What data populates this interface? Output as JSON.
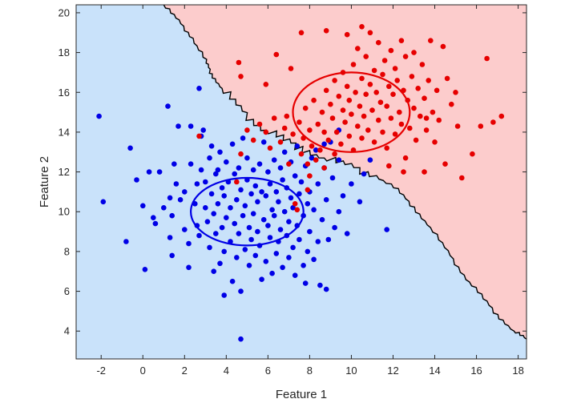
{
  "chart_data": {
    "type": "scatter",
    "title": "",
    "xlabel": "Feature 1",
    "ylabel": "Feature 2",
    "xlim": [
      -3.2,
      18.4
    ],
    "ylim": [
      2.6,
      20.4
    ],
    "x_ticks": [
      -2,
      0,
      2,
      4,
      6,
      8,
      10,
      12,
      14,
      16,
      18
    ],
    "y_ticks": [
      4,
      6,
      8,
      10,
      12,
      14,
      16,
      18,
      20
    ],
    "grid": false,
    "legend": "none",
    "colors": {
      "class_blue_point": "#0000e6",
      "class_red_point": "#e60000",
      "region_blue": "#c9e2fa",
      "region_red": "#fccccc",
      "boundary": "#000000"
    },
    "decision_boundary": [
      [
        1.0,
        20.4
      ],
      [
        1.7,
        19.6
      ],
      [
        2.4,
        18.7
      ],
      [
        3.0,
        17.6
      ],
      [
        3.3,
        16.9
      ],
      [
        3.8,
        16.2
      ],
      [
        4.6,
        15.2
      ],
      [
        5.6,
        14.3
      ],
      [
        6.6,
        13.7
      ],
      [
        7.6,
        13.2
      ],
      [
        8.7,
        12.7
      ],
      [
        9.9,
        12.3
      ],
      [
        11.2,
        11.8
      ],
      [
        12.2,
        11.1
      ],
      [
        13.0,
        10.2
      ],
      [
        13.8,
        9.2
      ],
      [
        14.6,
        8.0
      ],
      [
        15.4,
        6.8
      ],
      [
        16.2,
        5.8
      ],
      [
        17.0,
        4.8
      ],
      [
        17.8,
        4.0
      ],
      [
        18.4,
        3.6
      ]
    ],
    "class_regions": [
      {
        "name": "class-blue",
        "center": [
          5,
          10
        ],
        "radius_x": 2.7,
        "radius_y": 1.7
      },
      {
        "name": "class-red",
        "center": [
          10,
          15
        ],
        "radius_x": 2.8,
        "radius_y": 2.0
      }
    ],
    "series": [
      {
        "key": "blue",
        "points": [
          [
            -2.1,
            14.8
          ],
          [
            -1.9,
            10.5
          ],
          [
            -0.8,
            8.5
          ],
          [
            -0.6,
            13.2
          ],
          [
            -0.3,
            11.6
          ],
          [
            0,
            10.3
          ],
          [
            0.1,
            7.1
          ],
          [
            0.3,
            12.0
          ],
          [
            0.5,
            9.7
          ],
          [
            0.6,
            9.4
          ],
          [
            0.8,
            12.0
          ],
          [
            1.0,
            10.2
          ],
          [
            1.2,
            15.3
          ],
          [
            1.3,
            10.7
          ],
          [
            1.4,
            9.8
          ],
          [
            1.3,
            8.7
          ],
          [
            1.4,
            7.8
          ],
          [
            1.5,
            12.4
          ],
          [
            1.6,
            11.4
          ],
          [
            1.7,
            14.3
          ],
          [
            1.8,
            10.6
          ],
          [
            2.0,
            11.0
          ],
          [
            2.0,
            9.1
          ],
          [
            2.2,
            7.2
          ],
          [
            2.2,
            8.4
          ],
          [
            2.3,
            14.3
          ],
          [
            2.3,
            12.4
          ],
          [
            2.5,
            10.4
          ],
          [
            2.6,
            11.4
          ],
          [
            2.6,
            9.3
          ],
          [
            2.7,
            8.8
          ],
          [
            2.7,
            16.2
          ],
          [
            2.8,
            12.1
          ],
          [
            2.8,
            13.8
          ],
          [
            2.9,
            14.1
          ],
          [
            3.0,
            10.2
          ],
          [
            3.0,
            11.5
          ],
          [
            3.1,
            9.5
          ],
          [
            3.2,
            8.2
          ],
          [
            3.2,
            12.7
          ],
          [
            3.3,
            10.9
          ],
          [
            3.3,
            13.3
          ],
          [
            3.4,
            7.0
          ],
          [
            3.4,
            9.9
          ],
          [
            3.5,
            11.9
          ],
          [
            3.5,
            8.9
          ],
          [
            3.6,
            10.4
          ],
          [
            3.6,
            12.1
          ],
          [
            3.7,
            7.4
          ],
          [
            3.7,
            13.0
          ],
          [
            3.8,
            11.2
          ],
          [
            3.8,
            9.2
          ],
          [
            3.9,
            10.8
          ],
          [
            3.9,
            8.0
          ],
          [
            3.9,
            5.8
          ],
          [
            4.0,
            12.5
          ],
          [
            4.0,
            9.7
          ],
          [
            4.1,
            11.5
          ],
          [
            4.2,
            10.2
          ],
          [
            4.2,
            8.5
          ],
          [
            4.3,
            13.4
          ],
          [
            4.3,
            6.5
          ],
          [
            4.4,
            11.9
          ],
          [
            4.4,
            9.4
          ],
          [
            4.5,
            10.6
          ],
          [
            4.5,
            7.7
          ],
          [
            4.6,
            12.2
          ],
          [
            4.6,
            8.9
          ],
          [
            4.7,
            11.1
          ],
          [
            4.7,
            6.0
          ],
          [
            4.7,
            3.6
          ],
          [
            4.8,
            9.8
          ],
          [
            4.8,
            13.7
          ],
          [
            4.9,
            10.3
          ],
          [
            4.9,
            8.1
          ],
          [
            5.0,
            12.7
          ],
          [
            5.0,
            11.6
          ],
          [
            5.1,
            9.2
          ],
          [
            5.1,
            7.3
          ],
          [
            5.2,
            10.9
          ],
          [
            5.2,
            8.6
          ],
          [
            5.3,
            12.1
          ],
          [
            5.3,
            9.9
          ],
          [
            5.4,
            11.3
          ],
          [
            5.4,
            7.8
          ],
          [
            5.5,
            10.5
          ],
          [
            5.5,
            9.0
          ],
          [
            5.6,
            12.4
          ],
          [
            5.6,
            8.3
          ],
          [
            5.7,
            11.0
          ],
          [
            5.7,
            6.6
          ],
          [
            5.8,
            9.6
          ],
          [
            5.8,
            13.5
          ],
          [
            5.9,
            10.8
          ],
          [
            5.9,
            7.5
          ],
          [
            6.0,
            12.0
          ],
          [
            6.0,
            9.3
          ],
          [
            6.1,
            11.4
          ],
          [
            6.1,
            8.7
          ],
          [
            6.2,
            10.1
          ],
          [
            6.2,
            6.9
          ],
          [
            6.3,
            12.6
          ],
          [
            6.3,
            9.8
          ],
          [
            6.4,
            11.0
          ],
          [
            6.4,
            7.9
          ],
          [
            6.5,
            10.5
          ],
          [
            6.5,
            8.5
          ],
          [
            6.6,
            12.2
          ],
          [
            6.6,
            9.1
          ],
          [
            6.7,
            11.6
          ],
          [
            6.7,
            7.2
          ],
          [
            6.8,
            10.0
          ],
          [
            6.8,
            13.0
          ],
          [
            6.9,
            8.8
          ],
          [
            6.9,
            11.2
          ],
          [
            7.0,
            9.5
          ],
          [
            7.0,
            7.7
          ],
          [
            7.1,
            10.7
          ],
          [
            7.1,
            12.5
          ],
          [
            7.2,
            8.2
          ],
          [
            7.2,
            10.2
          ],
          [
            7.3,
            11.8
          ],
          [
            7.3,
            6.8
          ],
          [
            7.4,
            9.3
          ],
          [
            7.4,
            13.3
          ],
          [
            7.5,
            10.9
          ],
          [
            7.5,
            8.6
          ],
          [
            7.6,
            11.5
          ],
          [
            7.7,
            9.8
          ],
          [
            7.7,
            7.3
          ],
          [
            7.8,
            12.3
          ],
          [
            7.8,
            6.4
          ],
          [
            7.9,
            10.4
          ],
          [
            7.9,
            8.0
          ],
          [
            8.0,
            11.0
          ],
          [
            8.0,
            9.0
          ],
          [
            8.1,
            12.7
          ],
          [
            8.2,
            7.6
          ],
          [
            8.2,
            10.1
          ],
          [
            8.3,
            13.1
          ],
          [
            8.4,
            8.5
          ],
          [
            8.4,
            11.4
          ],
          [
            8.5,
            6.3
          ],
          [
            8.6,
            9.6
          ],
          [
            8.7,
            12.2
          ],
          [
            8.8,
            6.1
          ],
          [
            8.8,
            10.6
          ],
          [
            8.9,
            8.6
          ],
          [
            9.0,
            13.5
          ],
          [
            9.1,
            11.7
          ],
          [
            9.2,
            9.2
          ],
          [
            9.4,
            10.0
          ],
          [
            9.4,
            12.6
          ],
          [
            9.6,
            10.8
          ],
          [
            9.8,
            8.9
          ],
          [
            10.0,
            11.4
          ],
          [
            10.4,
            10.5
          ],
          [
            10.6,
            11.9
          ],
          [
            11.7,
            9.1
          ],
          [
            9.4,
            14.1
          ],
          [
            8.7,
            13.4
          ],
          [
            10.9,
            12.6
          ]
        ]
      },
      {
        "key": "red",
        "points": [
          [
            2.7,
            13.8
          ],
          [
            4.5,
            11.5
          ],
          [
            4.7,
            12.9
          ],
          [
            5.0,
            14.1
          ],
          [
            5.3,
            13.6
          ],
          [
            5.6,
            14.4
          ],
          [
            5.9,
            14.0
          ],
          [
            6.1,
            13.2
          ],
          [
            6.3,
            14.7
          ],
          [
            6.6,
            13.5
          ],
          [
            6.8,
            14.2
          ],
          [
            7.0,
            12.4
          ],
          [
            7.2,
            13.9
          ],
          [
            7.3,
            10.4
          ],
          [
            7.4,
            10.1
          ],
          [
            7.5,
            14.5
          ],
          [
            7.6,
            12.9
          ],
          [
            7.7,
            13.7
          ],
          [
            7.8,
            15.2
          ],
          [
            7.9,
            12.4
          ],
          [
            8.0,
            14.1
          ],
          [
            8.1,
            13.3
          ],
          [
            8.2,
            15.6
          ],
          [
            8.3,
            12.6
          ],
          [
            8.4,
            14.4
          ],
          [
            8.5,
            13.1
          ],
          [
            8.6,
            15.0
          ],
          [
            8.7,
            14.0
          ],
          [
            8.7,
            12.2
          ],
          [
            8.8,
            16.1
          ],
          [
            8.9,
            13.6
          ],
          [
            9.0,
            15.4
          ],
          [
            9.1,
            14.7
          ],
          [
            9.2,
            12.9
          ],
          [
            9.2,
            16.6
          ],
          [
            9.3,
            14.0
          ],
          [
            9.4,
            15.8
          ],
          [
            9.5,
            13.4
          ],
          [
            9.6,
            15.1
          ],
          [
            9.6,
            17.0
          ],
          [
            9.7,
            14.5
          ],
          [
            9.8,
            16.3
          ],
          [
            9.9,
            13.8
          ],
          [
            9.9,
            15.6
          ],
          [
            10.0,
            14.9
          ],
          [
            10.1,
            17.4
          ],
          [
            10.1,
            13.1
          ],
          [
            10.2,
            16.0
          ],
          [
            10.3,
            14.3
          ],
          [
            10.3,
            18.2
          ],
          [
            10.4,
            15.3
          ],
          [
            10.5,
            16.7
          ],
          [
            10.5,
            13.7
          ],
          [
            10.6,
            14.8
          ],
          [
            10.7,
            17.8
          ],
          [
            10.7,
            15.9
          ],
          [
            10.8,
            14.1
          ],
          [
            10.9,
            16.4
          ],
          [
            10.9,
            19.0
          ],
          [
            11.0,
            15.1
          ],
          [
            11.1,
            17.1
          ],
          [
            11.1,
            13.5
          ],
          [
            11.2,
            16.0
          ],
          [
            11.3,
            14.6
          ],
          [
            11.3,
            18.5
          ],
          [
            11.4,
            15.5
          ],
          [
            11.5,
            16.9
          ],
          [
            11.5,
            14.0
          ],
          [
            11.6,
            17.6
          ],
          [
            11.7,
            15.3
          ],
          [
            11.7,
            13.2
          ],
          [
            11.8,
            16.3
          ],
          [
            11.9,
            14.7
          ],
          [
            11.9,
            18.1
          ],
          [
            12.0,
            15.9
          ],
          [
            12.1,
            17.2
          ],
          [
            12.1,
            13.9
          ],
          [
            12.2,
            16.6
          ],
          [
            12.3,
            15.0
          ],
          [
            12.4,
            18.6
          ],
          [
            12.4,
            14.4
          ],
          [
            12.5,
            16.1
          ],
          [
            12.6,
            17.8
          ],
          [
            12.6,
            12.7
          ],
          [
            12.7,
            15.6
          ],
          [
            12.8,
            14.2
          ],
          [
            12.9,
            16.8
          ],
          [
            13.0,
            15.2
          ],
          [
            13.0,
            18.0
          ],
          [
            13.1,
            13.6
          ],
          [
            13.2,
            16.2
          ],
          [
            13.3,
            14.8
          ],
          [
            13.4,
            17.4
          ],
          [
            13.5,
            15.7
          ],
          [
            13.5,
            12.0
          ],
          [
            13.6,
            14.1
          ],
          [
            13.7,
            16.6
          ],
          [
            13.8,
            18.6
          ],
          [
            13.9,
            15.0
          ],
          [
            14.0,
            13.5
          ],
          [
            14.1,
            16.1
          ],
          [
            14.2,
            14.6
          ],
          [
            14.4,
            18.3
          ],
          [
            14.6,
            16.7
          ],
          [
            14.8,
            15.4
          ],
          [
            15.0,
            16.0
          ],
          [
            15.1,
            14.3
          ],
          [
            15.3,
            11.7
          ],
          [
            15.8,
            12.9
          ],
          [
            16.2,
            14.3
          ],
          [
            16.5,
            17.7
          ],
          [
            16.8,
            14.5
          ],
          [
            17.2,
            14.8
          ],
          [
            12.5,
            12.0
          ],
          [
            11.8,
            12.3
          ],
          [
            7.6,
            19.0
          ],
          [
            8.8,
            19.1
          ],
          [
            6.4,
            17.9
          ],
          [
            5.9,
            16.4
          ],
          [
            4.6,
            17.5
          ],
          [
            4.7,
            16.8
          ],
          [
            8.0,
            11.8
          ],
          [
            7.9,
            11.1
          ],
          [
            6.9,
            14.8
          ],
          [
            10.5,
            19.3
          ],
          [
            9.8,
            18.9
          ],
          [
            14.5,
            12.4
          ],
          [
            7.1,
            17.2
          ],
          [
            13.6,
            14.7
          ]
        ]
      }
    ]
  }
}
